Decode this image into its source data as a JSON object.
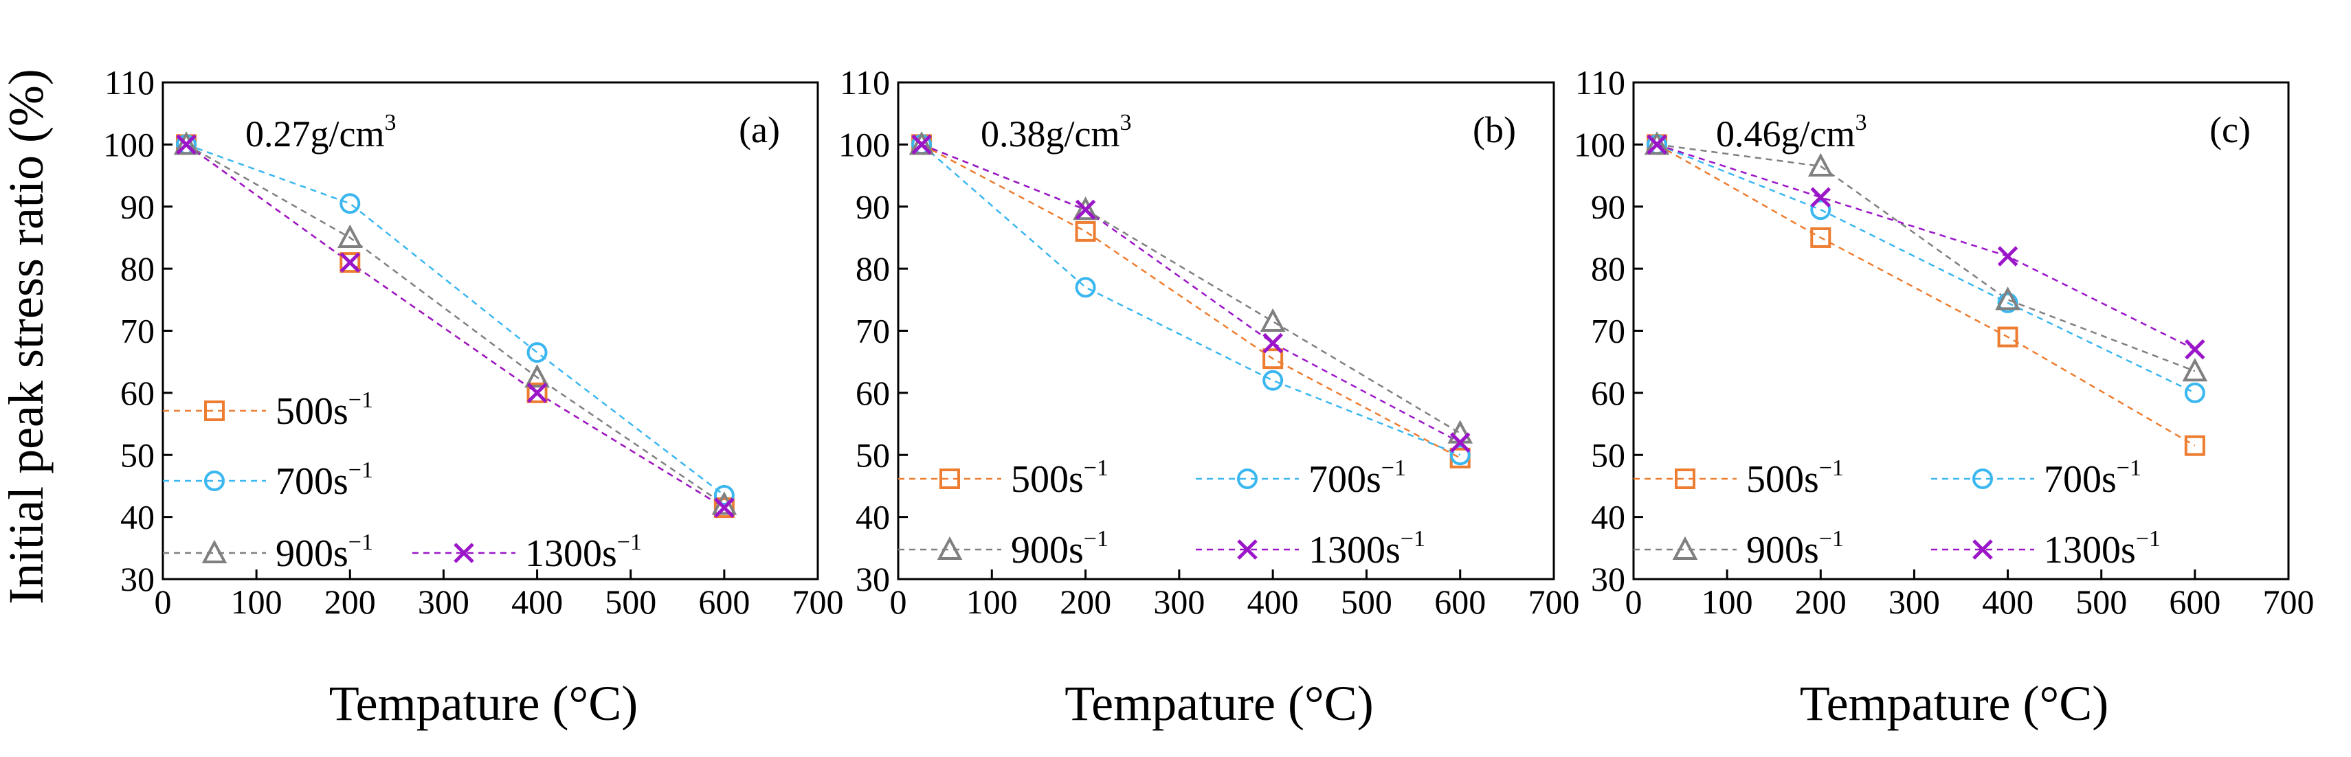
{
  "figure": {
    "ylabel": "Initial peak stress ratio (%)",
    "xlabel": "Tempature (°C)"
  },
  "series_styles": [
    {
      "name": "500s-1",
      "base": "500s",
      "sup": "−1",
      "color": "#ED7D31",
      "marker": "square"
    },
    {
      "name": "700s-1",
      "base": "700s",
      "sup": "−1",
      "color": "#3BB7F0",
      "marker": "circle"
    },
    {
      "name": "900s-1",
      "base": "900s",
      "sup": "−1",
      "color": "#808080",
      "marker": "triangle"
    },
    {
      "name": "1300s-1",
      "base": "1300s",
      "sup": "−1",
      "color": "#9B16C8",
      "marker": "cross"
    }
  ],
  "chart_data": [
    {
      "type": "scatter",
      "panel": "(a)",
      "density_base": "0.27g/cm",
      "density_sup": "3",
      "xlabel": "Tempature (°C)",
      "ylabel": "Initial peak stress ratio (%)",
      "xlim": [
        0,
        700
      ],
      "ylim": [
        30,
        110
      ],
      "xticks": [
        0,
        100,
        200,
        300,
        400,
        500,
        600,
        700
      ],
      "yticks": [
        30,
        40,
        50,
        60,
        70,
        80,
        90,
        100,
        110
      ],
      "x": [
        25,
        200,
        400,
        600
      ],
      "series": [
        {
          "name": "500s-1",
          "values": [
            100,
            81,
            60,
            41.5
          ]
        },
        {
          "name": "700s-1",
          "values": [
            100,
            90.5,
            66.5,
            43.5
          ]
        },
        {
          "name": "900s-1",
          "values": [
            100,
            85,
            62.5,
            42
          ]
        },
        {
          "name": "1300s-1",
          "values": [
            100,
            81,
            60,
            41.5
          ]
        }
      ]
    },
    {
      "type": "scatter",
      "panel": "(b)",
      "density_base": "0.38g/cm",
      "density_sup": "3",
      "xlabel": "Tempature (°C)",
      "ylabel": "Initial peak stress ratio (%)",
      "xlim": [
        0,
        700
      ],
      "ylim": [
        30,
        110
      ],
      "xticks": [
        0,
        100,
        200,
        300,
        400,
        500,
        600,
        700
      ],
      "yticks": [
        30,
        40,
        50,
        60,
        70,
        80,
        90,
        100,
        110
      ],
      "x": [
        25,
        200,
        400,
        600
      ],
      "series": [
        {
          "name": "500s-1",
          "values": [
            100,
            86,
            65.5,
            49.5
          ]
        },
        {
          "name": "700s-1",
          "values": [
            100,
            77,
            62,
            50
          ]
        },
        {
          "name": "900s-1",
          "values": [
            100,
            89.5,
            71.5,
            53.5
          ]
        },
        {
          "name": "1300s-1",
          "values": [
            100,
            89.5,
            68,
            52
          ]
        }
      ]
    },
    {
      "type": "scatter",
      "panel": "(c)",
      "density_base": "0.46g/cm",
      "density_sup": "3",
      "xlabel": "Tempature (°C)",
      "ylabel": "Initial peak stress ratio (%)",
      "xlim": [
        0,
        700
      ],
      "ylim": [
        30,
        110
      ],
      "xticks": [
        0,
        100,
        200,
        300,
        400,
        500,
        600,
        700
      ],
      "yticks": [
        30,
        40,
        50,
        60,
        70,
        80,
        90,
        100,
        110
      ],
      "x": [
        25,
        200,
        400,
        600
      ],
      "series": [
        {
          "name": "500s-1",
          "values": [
            100,
            85,
            69,
            51.5
          ]
        },
        {
          "name": "700s-1",
          "values": [
            100,
            89.5,
            74.5,
            60
          ]
        },
        {
          "name": "900s-1",
          "values": [
            100,
            96.5,
            75,
            63.5
          ]
        },
        {
          "name": "1300s-1",
          "values": [
            100,
            91.5,
            82,
            67
          ]
        }
      ]
    }
  ]
}
